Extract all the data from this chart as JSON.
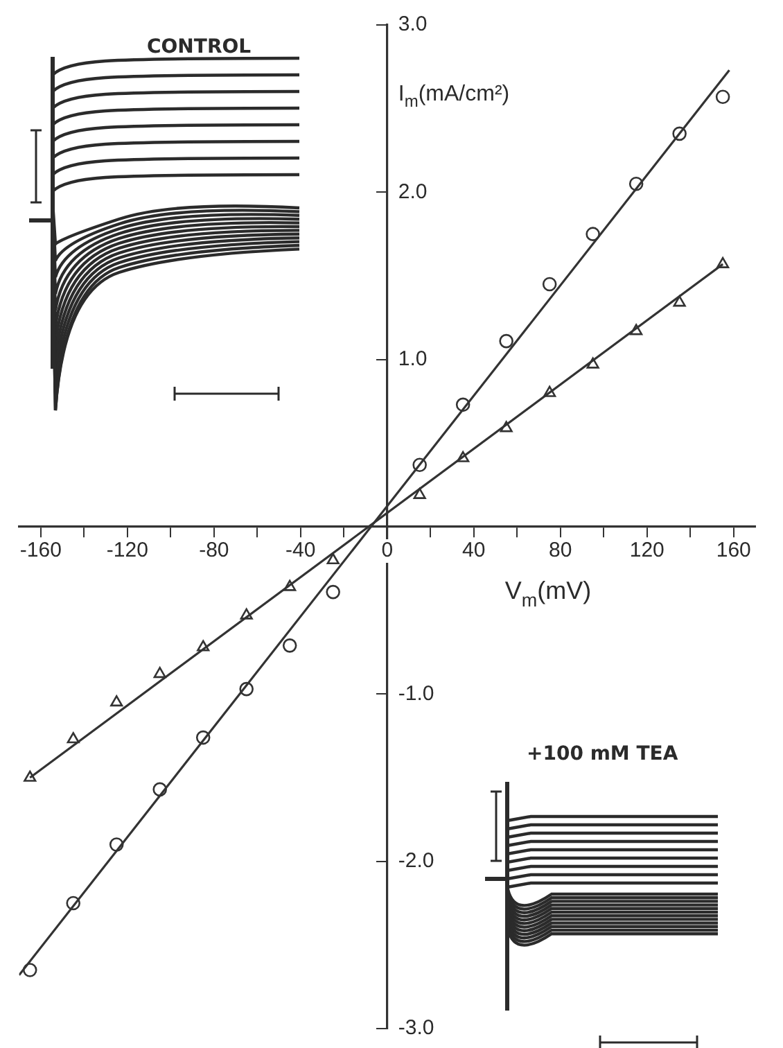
{
  "chart_data": {
    "type": "scatter",
    "xlabel": "V$_{m}$(mV)",
    "ylabel": "I$_{m}$(mA/cm²)",
    "annotations": [
      "CONTROL",
      "+100 mM TEA"
    ],
    "xlim": [
      -170,
      170
    ],
    "ylim": [
      -3,
      3
    ],
    "xticks": [
      {
        "value": -160,
        "label": "-160"
      },
      {
        "value": -140,
        "label": null
      },
      {
        "value": -120,
        "label": "-120"
      },
      {
        "value": -100,
        "label": null
      },
      {
        "value": -80,
        "label": "-80"
      },
      {
        "value": -60,
        "label": null
      },
      {
        "value": -40,
        "label": "-40"
      },
      {
        "value": -20,
        "label": null
      },
      0,
      {
        "value": 20,
        "label": null
      },
      40,
      {
        "value": 60,
        "label": null
      },
      80,
      {
        "value": 100,
        "label": null
      },
      120,
      {
        "value": 140,
        "label": null
      },
      160
    ],
    "yticks": [
      {
        "value": -3,
        "label": "-3.0"
      },
      {
        "value": -2,
        "label": "-2.0"
      },
      {
        "value": -1,
        "label": "-1.0"
      },
      {
        "value": 0,
        "label": null
      },
      {
        "value": 1,
        "label": "1.0"
      },
      {
        "value": 2,
        "label": "2.0"
      },
      {
        "value": 3,
        "label": "3.0"
      }
    ],
    "grid": false,
    "legend": false,
    "series": [
      {
        "marker": "circle",
        "color": "#333333",
        "x": [
          -165,
          -145,
          -125,
          -105,
          -85,
          -65,
          -45,
          -25,
          15,
          35,
          55,
          75,
          95,
          115,
          135,
          155
        ],
        "values": [
          -2.65,
          -2.25,
          -1.9,
          -1.57,
          -1.26,
          -0.97,
          -0.71,
          -0.39,
          0.37,
          0.73,
          1.11,
          1.45,
          1.75,
          2.05,
          2.35,
          2.57
        ]
      },
      {
        "marker": "triangle",
        "color": "#333333",
        "x": [
          -165,
          -145,
          -125,
          -105,
          -85,
          -65,
          -45,
          -25,
          15,
          35,
          55,
          75,
          95,
          115,
          135,
          155
        ],
        "values": [
          -1.5,
          -1.27,
          -1.05,
          -0.88,
          -0.72,
          -0.53,
          -0.36,
          -0.2,
          0.19,
          0.41,
          0.59,
          0.8,
          0.97,
          1.17,
          1.34,
          1.57
        ]
      },
      {
        "type": "line",
        "marker": "none",
        "color": "#333333",
        "x": [
          -170,
          158
        ],
        "values": [
          -2.68,
          2.73
        ]
      },
      {
        "type": "line",
        "marker": "none",
        "color": "#333333",
        "x": [
          -165,
          155
        ],
        "values": [
          -1.5,
          1.57
        ]
      }
    ]
  }
}
